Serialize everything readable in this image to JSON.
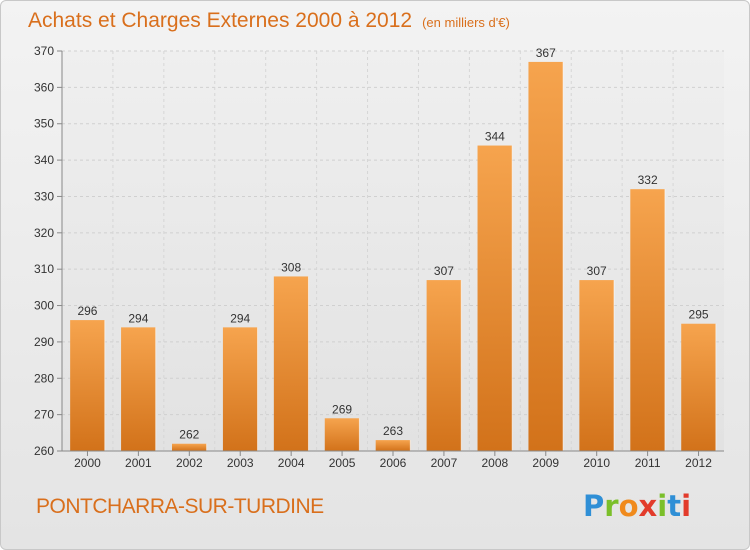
{
  "chart_data": {
    "type": "bar",
    "title": "Achats et Charges Externes 2000 à 2012",
    "subtitle": "(en milliers d'€)",
    "categories": [
      "2000",
      "2001",
      "2002",
      "2003",
      "2004",
      "2005",
      "2006",
      "2007",
      "2008",
      "2009",
      "2010",
      "2011",
      "2012"
    ],
    "values": [
      296,
      294,
      262,
      294,
      308,
      269,
      263,
      307,
      344,
      367,
      307,
      332,
      295
    ],
    "ylim": [
      260,
      370
    ],
    "yticks": [
      260,
      270,
      280,
      290,
      300,
      310,
      320,
      330,
      340,
      350,
      360,
      370
    ],
    "grid": true,
    "bar_color_top": "#f6a44e",
    "bar_color_bottom": "#d2721a"
  },
  "commune": "PONTCHARRA-SUR-TURDINE",
  "logo": {
    "letters": [
      "P",
      "r",
      "o",
      "x",
      "i",
      "t",
      "i"
    ],
    "colors": [
      "#2f8fd6",
      "#7bbf2a",
      "#f08a1c",
      "#e23b2b",
      "#7bbf2a",
      "#2f8fd6",
      "#e23b2b"
    ]
  }
}
